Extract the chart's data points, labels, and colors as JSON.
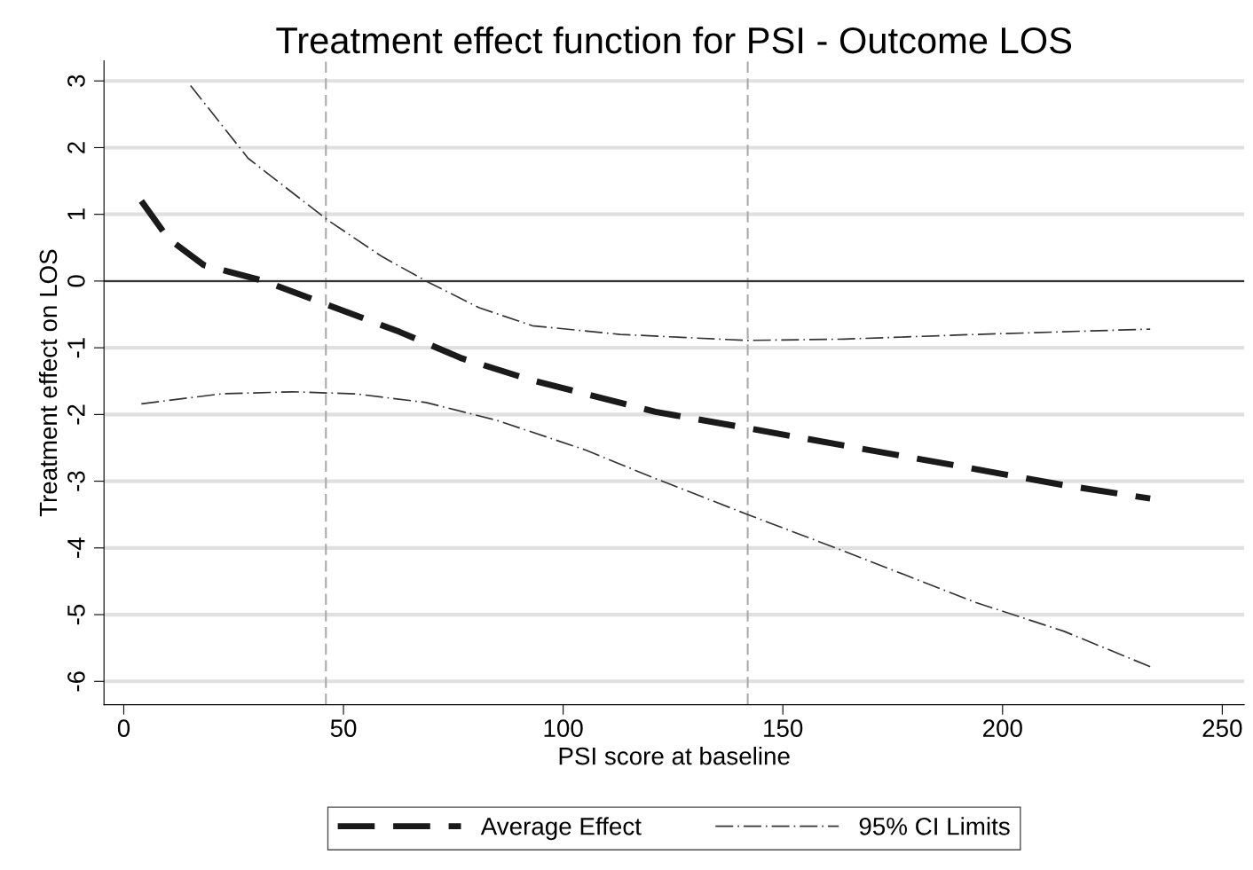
{
  "chart_data": {
    "type": "line",
    "title": "Treatment effect function for PSI - Outcome LOS",
    "xlabel": "PSI score at baseline",
    "ylabel": "Treatment effect on LOS",
    "series": [
      {
        "name": "Average Effect",
        "color": "#1a1a1a",
        "line_style": "dashed",
        "x": [
          4,
          10.1,
          18.2,
          32,
          46.5,
          62.7,
          77,
          93,
          105,
          121,
          141.6,
          166,
          194,
          214,
          233.6
        ],
        "values": [
          1.2,
          0.64,
          0.24,
          0,
          -0.36,
          -0.76,
          -1.16,
          -1.49,
          -1.69,
          -1.96,
          -2.2,
          -2.49,
          -2.82,
          -3.06,
          -3.26
        ]
      },
      {
        "name": "95% CI Limits",
        "color": "#333333",
        "line_style": "dashdot",
        "x": [
          15.2,
          28.3,
          46.5,
          58.7,
          68.8,
          80.9,
          93,
          113,
          141.6,
          164,
          194,
          233.6
        ],
        "values": [
          2.93,
          1.84,
          0.91,
          0.37,
          0,
          -0.4,
          -0.67,
          -0.8,
          -0.89,
          -0.87,
          -0.8,
          -0.72
        ]
      },
      {
        "color": "#333333",
        "line_style": "dashdot",
        "x": [
          4,
          22.3,
          38.4,
          52.6,
          68.8,
          85,
          105,
          121,
          141.6,
          164,
          194,
          214,
          233.6
        ],
        "values": [
          -1.84,
          -1.69,
          -1.66,
          -1.69,
          -1.82,
          -2.09,
          -2.53,
          -2.96,
          -3.49,
          -4.05,
          -4.82,
          -5.25,
          -5.78
        ]
      }
    ],
    "xlim": [
      -4.5,
      255
    ],
    "ylim": [
      -6.35,
      3.3
    ],
    "xticks": [
      0,
      50,
      100,
      150,
      200,
      250
    ],
    "yticks": [
      -6,
      -5,
      -4,
      -3,
      -2,
      -1,
      0,
      1,
      2,
      3
    ],
    "ref_lines": [
      {
        "axis": "x",
        "value": 46,
        "color": "#aaaaaa",
        "line_style": "dashed"
      },
      {
        "axis": "x",
        "value": 142,
        "color": "#aaaaaa",
        "line_style": "dashed"
      },
      {
        "axis": "y",
        "value": 0,
        "color": "#333333",
        "line_style": "solid"
      }
    ],
    "grid": "y",
    "legend": "bottom"
  }
}
